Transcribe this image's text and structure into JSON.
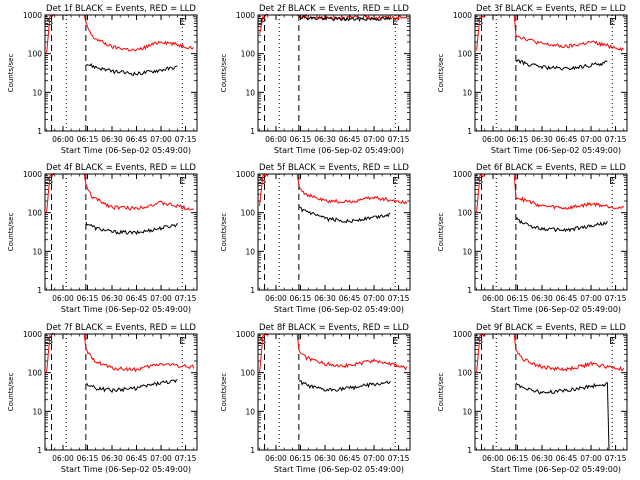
{
  "chart_data": [
    {
      "type": "line",
      "title": "Det 1f BLACK = Events, RED = LLD",
      "ylabel": "Counts/sec",
      "xlabel": "Start Time (06-Sep-02 05:49:00)",
      "x_ticks": [
        "06:00",
        "06:15",
        "06:30",
        "06:45",
        "07:00",
        "07:15"
      ],
      "y_ticks": [
        "1",
        "10",
        "100",
        "1000"
      ],
      "ylim": [
        1,
        1000
      ],
      "y_scale": "log",
      "markers": [
        "E",
        "S",
        "E"
      ],
      "series": [
        {
          "color": "#ff0000",
          "points": [
            [
              "05:50",
              100
            ],
            [
              "05:52",
              900
            ],
            [
              "05:55",
              1000
            ],
            [
              "06:13",
              1000
            ],
            [
              "06:14",
              600
            ],
            [
              "06:18",
              270
            ],
            [
              "06:30",
              150
            ],
            [
              "06:45",
              120
            ],
            [
              "07:00",
              210
            ],
            [
              "07:20",
              140
            ]
          ]
        },
        {
          "color": "#000000",
          "points": [
            [
              "06:14",
              55
            ],
            [
              "06:20",
              45
            ],
            [
              "06:30",
              35
            ],
            [
              "06:45",
              30
            ],
            [
              "07:00",
              38
            ],
            [
              "07:10",
              45
            ]
          ]
        }
      ]
    },
    {
      "type": "line",
      "title": "Det 2f BLACK = Events, RED = LLD",
      "ylabel": "Counts/sec",
      "xlabel": "Start Time (06-Sep-02 05:49:00)",
      "x_ticks": [
        "06:00",
        "06:15",
        "06:30",
        "06:45",
        "07:00",
        "07:15"
      ],
      "y_ticks": [
        "1",
        "10",
        "100",
        "1000"
      ],
      "ylim": [
        1,
        1000
      ],
      "y_scale": "log",
      "markers": [
        "E",
        "P",
        "E"
      ],
      "series": [
        {
          "color": "#ff0000",
          "points": [
            [
              "05:50",
              300
            ],
            [
              "05:52",
              900
            ],
            [
              "05:55",
              1000
            ],
            [
              "06:13",
              1000
            ],
            [
              "06:16",
              900
            ],
            [
              "06:30",
              850
            ],
            [
              "06:45",
              850
            ],
            [
              "07:00",
              870
            ],
            [
              "07:20",
              850
            ]
          ]
        },
        {
          "color": "#000000",
          "points": [
            [
              "06:14",
              950
            ],
            [
              "06:18",
              850
            ],
            [
              "06:30",
              800
            ],
            [
              "06:45",
              780
            ],
            [
              "07:00",
              800
            ],
            [
              "07:10",
              800
            ]
          ]
        }
      ]
    },
    {
      "type": "line",
      "title": "Det 3f BLACK = Events, RED = LLD",
      "ylabel": "Counts/sec",
      "xlabel": "Start Time (06-Sep-02 05:49:00)",
      "x_ticks": [
        "06:00",
        "06:15",
        "06:30",
        "06:45",
        "07:00",
        "07:15"
      ],
      "y_ticks": [
        "1",
        "10",
        "100",
        "1000"
      ],
      "ylim": [
        1,
        1000
      ],
      "y_scale": "log",
      "markers": [
        "E",
        "S",
        "E"
      ],
      "series": [
        {
          "color": "#ff0000",
          "points": [
            [
              "05:50",
              120
            ],
            [
              "05:52",
              900
            ],
            [
              "05:55",
              1000
            ],
            [
              "06:13",
              1000
            ],
            [
              "06:14",
              300
            ],
            [
              "06:18",
              260
            ],
            [
              "06:30",
              180
            ],
            [
              "06:45",
              150
            ],
            [
              "07:00",
              200
            ],
            [
              "07:20",
              130
            ]
          ]
        },
        {
          "color": "#000000",
          "points": [
            [
              "06:14",
              70
            ],
            [
              "06:20",
              55
            ],
            [
              "06:30",
              45
            ],
            [
              "06:45",
              40
            ],
            [
              "07:00",
              50
            ],
            [
              "07:10",
              60
            ]
          ]
        }
      ]
    },
    {
      "type": "line",
      "title": "Det 4f BLACK = Events, RED = LLD",
      "ylabel": "Counts/sec",
      "xlabel": "Start Time (06-Sep-02 05:49:00)",
      "x_ticks": [
        "06:00",
        "06:15",
        "06:30",
        "06:45",
        "07:00",
        "07:15"
      ],
      "y_ticks": [
        "1",
        "10",
        "100",
        "1000"
      ],
      "ylim": [
        1,
        1000
      ],
      "y_scale": "log",
      "markers": [
        "E",
        "S",
        "E"
      ],
      "series": [
        {
          "color": "#ff0000",
          "points": [
            [
              "05:50",
              100
            ],
            [
              "05:52",
              900
            ],
            [
              "05:55",
              1000
            ],
            [
              "06:13",
              1000
            ],
            [
              "06:14",
              500
            ],
            [
              "06:18",
              250
            ],
            [
              "06:30",
              140
            ],
            [
              "06:45",
              130
            ],
            [
              "07:00",
              180
            ],
            [
              "07:20",
              120
            ]
          ]
        },
        {
          "color": "#000000",
          "points": [
            [
              "06:14",
              55
            ],
            [
              "06:20",
              40
            ],
            [
              "06:30",
              32
            ],
            [
              "06:45",
              30
            ],
            [
              "07:00",
              40
            ],
            [
              "07:10",
              50
            ]
          ]
        }
      ]
    },
    {
      "type": "line",
      "title": "Det 5f BLACK = Events, RED = LLD",
      "ylabel": "Counts/sec",
      "xlabel": "Start Time (06-Sep-02 05:49:00)",
      "x_ticks": [
        "06:00",
        "06:15",
        "06:30",
        "06:45",
        "07:00",
        "07:15"
      ],
      "y_ticks": [
        "1",
        "10",
        "100",
        "1000"
      ],
      "ylim": [
        1,
        1000
      ],
      "y_scale": "log",
      "markers": [
        "E",
        "S",
        "E"
      ],
      "series": [
        {
          "color": "#ff0000",
          "points": [
            [
              "05:50",
              150
            ],
            [
              "05:52",
              900
            ],
            [
              "05:55",
              1000
            ],
            [
              "06:13",
              1000
            ],
            [
              "06:14",
              500
            ],
            [
              "06:18",
              300
            ],
            [
              "06:30",
              200
            ],
            [
              "06:45",
              190
            ],
            [
              "07:00",
              250
            ],
            [
              "07:20",
              180
            ]
          ]
        },
        {
          "color": "#000000",
          "points": [
            [
              "06:14",
              130
            ],
            [
              "06:20",
              100
            ],
            [
              "06:30",
              70
            ],
            [
              "06:45",
              60
            ],
            [
              "07:00",
              75
            ],
            [
              "07:10",
              90
            ]
          ]
        }
      ]
    },
    {
      "type": "line",
      "title": "Det 6f BLACK = Events, RED = LLD",
      "ylabel": "Counts/sec",
      "xlabel": "Start Time (06-Sep-02 05:49:00)",
      "x_ticks": [
        "06:00",
        "06:15",
        "06:30",
        "06:45",
        "07:00",
        "07:15"
      ],
      "y_ticks": [
        "1",
        "10",
        "100",
        "1000"
      ],
      "ylim": [
        1,
        1000
      ],
      "y_scale": "log",
      "markers": [
        "E",
        "S",
        "E"
      ],
      "series": [
        {
          "color": "#ff0000",
          "points": [
            [
              "05:50",
              100
            ],
            [
              "05:52",
              900
            ],
            [
              "05:55",
              1000
            ],
            [
              "06:13",
              1000
            ],
            [
              "06:14",
              250
            ],
            [
              "06:18",
              220
            ],
            [
              "06:30",
              150
            ],
            [
              "06:45",
              130
            ],
            [
              "07:00",
              170
            ],
            [
              "07:20",
              130
            ]
          ]
        },
        {
          "color": "#000000",
          "points": [
            [
              "06:14",
              70
            ],
            [
              "06:20",
              50
            ],
            [
              "06:30",
              38
            ],
            [
              "06:45",
              35
            ],
            [
              "07:00",
              45
            ],
            [
              "07:10",
              55
            ]
          ]
        }
      ]
    },
    {
      "type": "line",
      "title": "Det 7f BLACK = Events, RED = LLD",
      "ylabel": "Counts/sec",
      "xlabel": "Start Time (06-Sep-02 05:49:00)",
      "x_ticks": [
        "06:00",
        "06:15",
        "06:30",
        "06:45",
        "07:00",
        "07:15"
      ],
      "y_ticks": [
        "1",
        "10",
        "100",
        "1000"
      ],
      "ylim": [
        1,
        1000
      ],
      "y_scale": "log",
      "markers": [
        "E",
        "S",
        "E"
      ],
      "series": [
        {
          "color": "#ff0000",
          "points": [
            [
              "05:50",
              100
            ],
            [
              "05:52",
              900
            ],
            [
              "05:55",
              1000
            ],
            [
              "06:13",
              1000
            ],
            [
              "06:14",
              400
            ],
            [
              "06:18",
              220
            ],
            [
              "06:30",
              130
            ],
            [
              "06:45",
              120
            ],
            [
              "07:00",
              170
            ],
            [
              "07:20",
              140
            ]
          ]
        },
        {
          "color": "#000000",
          "points": [
            [
              "06:14",
              50
            ],
            [
              "06:20",
              40
            ],
            [
              "06:30",
              35
            ],
            [
              "06:45",
              40
            ],
            [
              "07:00",
              55
            ],
            [
              "07:10",
              60
            ]
          ]
        }
      ]
    },
    {
      "type": "line",
      "title": "Det 8f BLACK = Events, RED = LLD",
      "ylabel": "Counts/sec",
      "xlabel": "Start Time (06-Sep-02 05:49:00)",
      "x_ticks": [
        "06:00",
        "06:15",
        "06:30",
        "06:45",
        "07:00",
        "07:15"
      ],
      "y_ticks": [
        "1",
        "10",
        "100",
        "1000"
      ],
      "ylim": [
        1,
        1000
      ],
      "y_scale": "log",
      "markers": [
        "E",
        "S",
        "E"
      ],
      "series": [
        {
          "color": "#ff0000",
          "points": [
            [
              "05:50",
              100
            ],
            [
              "05:52",
              900
            ],
            [
              "05:55",
              1000
            ],
            [
              "06:13",
              1000
            ],
            [
              "06:14",
              400
            ],
            [
              "06:18",
              250
            ],
            [
              "06:30",
              170
            ],
            [
              "06:45",
              150
            ],
            [
              "07:00",
              210
            ],
            [
              "07:20",
              130
            ]
          ]
        },
        {
          "color": "#000000",
          "points": [
            [
              "06:14",
              60
            ],
            [
              "06:20",
              45
            ],
            [
              "06:30",
              35
            ],
            [
              "06:45",
              40
            ],
            [
              "07:00",
              50
            ],
            [
              "07:10",
              55
            ]
          ]
        }
      ]
    },
    {
      "type": "line",
      "title": "Det 9f BLACK = Events, RED = LLD",
      "ylabel": "Counts/sec",
      "xlabel": "Start Time (06-Sep-02 05:49:00)",
      "x_ticks": [
        "06:00",
        "06:15",
        "06:30",
        "06:45",
        "07:00",
        "07:15"
      ],
      "y_ticks": [
        "1",
        "10",
        "100",
        "1000"
      ],
      "ylim": [
        1,
        1000
      ],
      "y_scale": "log",
      "markers": [
        "E",
        "S",
        "E"
      ],
      "series": [
        {
          "color": "#ff0000",
          "points": [
            [
              "05:50",
              100
            ],
            [
              "05:52",
              900
            ],
            [
              "05:55",
              1000
            ],
            [
              "06:13",
              1000
            ],
            [
              "06:14",
              400
            ],
            [
              "06:18",
              230
            ],
            [
              "06:30",
              140
            ],
            [
              "06:45",
              120
            ],
            [
              "07:00",
              170
            ],
            [
              "07:20",
              120
            ]
          ]
        },
        {
          "color": "#000000",
          "points": [
            [
              "06:14",
              50
            ],
            [
              "06:20",
              40
            ],
            [
              "06:30",
              30
            ],
            [
              "06:45",
              35
            ],
            [
              "07:00",
              45
            ],
            [
              "07:10",
              50
            ],
            [
              "07:11",
              1
            ]
          ]
        }
      ]
    }
  ]
}
